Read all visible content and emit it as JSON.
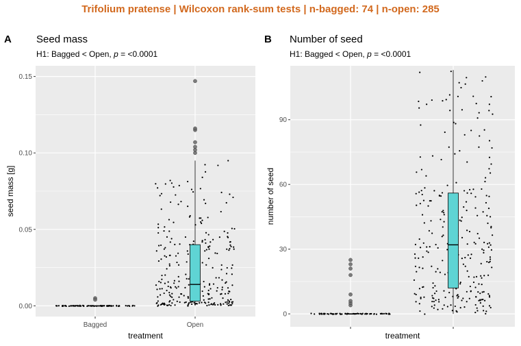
{
  "suptitle": "Trifolium pratense | Wilcoxon rank-sum tests | n-bagged: 74 | n-open: 285",
  "colors": {
    "suptitle": "#d2691e",
    "panel_background": "#ebebeb",
    "grid": "#ffffff",
    "box_fill": "#5fd4d4",
    "points": "#000000",
    "outliers": "#666666"
  },
  "panels": [
    {
      "tag": "A",
      "title": "Seed mass",
      "subtitle_prefix": "H1: Bagged < Open, ",
      "subtitle_p": "p",
      "subtitle_suffix": " = <0.0001"
    },
    {
      "tag": "B",
      "title": "Number of seed",
      "subtitle_prefix": "H1: Bagged < Open, ",
      "subtitle_p": "p",
      "subtitle_suffix": " = <0.0001"
    }
  ],
  "chart_data": [
    {
      "type": "box",
      "title": "Seed mass",
      "xlabel": "treatment",
      "ylabel": "seed mass [g]",
      "categories": [
        "Bagged",
        "Open"
      ],
      "x_tick_labels": [
        "Bagged",
        "Open"
      ],
      "ylim": [
        -0.007,
        0.157
      ],
      "yticks": [
        0.0,
        0.05,
        0.1,
        0.15
      ],
      "ytick_labels": [
        "0.00",
        "0.05",
        "0.10",
        "0.15"
      ],
      "grid": true,
      "boxes": [
        {
          "category": "Bagged",
          "min": 0.0,
          "q1": 0.0,
          "median": 0.0,
          "q3": 0.0,
          "max": 0.0,
          "outliers": [
            0.005,
            0.004
          ]
        },
        {
          "category": "Open",
          "min": 0.0,
          "q1": 0.003,
          "median": 0.014,
          "q3": 0.04,
          "max": 0.095,
          "outliers": [
            0.1,
            0.102,
            0.104,
            0.107,
            0.115,
            0.116,
            0.147
          ]
        }
      ],
      "n": {
        "Bagged": 74,
        "Open": 285
      }
    },
    {
      "type": "box",
      "title": "Number of seed",
      "xlabel": "treatment",
      "ylabel": "number of seed",
      "categories": [
        "Bagged",
        "Open"
      ],
      "x_tick_labels": [
        "",
        ""
      ],
      "ylim": [
        -6,
        115
      ],
      "yticks": [
        0,
        30,
        60,
        90
      ],
      "ytick_labels": [
        "0",
        "30",
        "60",
        "90"
      ],
      "grid": true,
      "boxes": [
        {
          "category": "Bagged",
          "min": 0,
          "q1": 0,
          "median": 0,
          "q3": 0,
          "max": 0,
          "outliers": [
            4,
            5,
            6,
            9,
            18,
            21,
            23,
            25
          ]
        },
        {
          "category": "Open",
          "min": 0,
          "q1": 12,
          "median": 32,
          "q3": 56,
          "max": 113,
          "outliers": []
        }
      ],
      "n": {
        "Bagged": 74,
        "Open": 285
      }
    }
  ]
}
